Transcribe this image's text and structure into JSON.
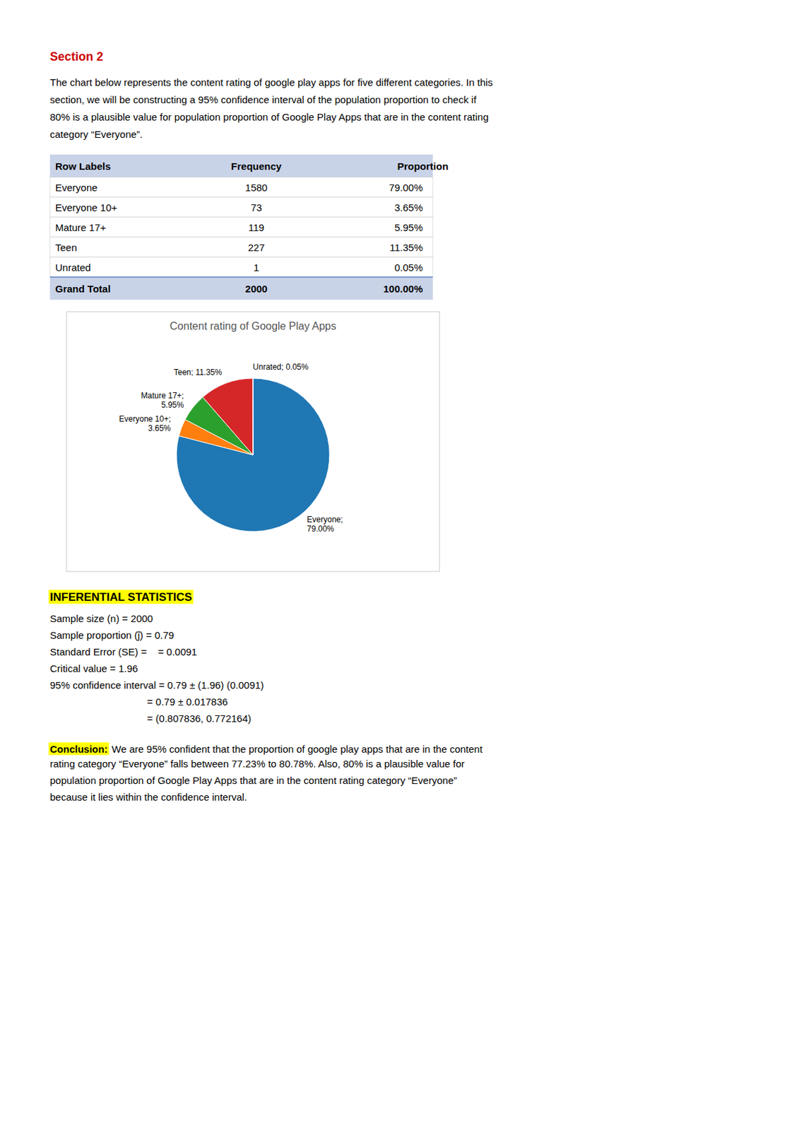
{
  "page": {
    "section_title": "Section 2",
    "section_title_color": "#CC0000",
    "intro_text_lines": [
      "The chart below represents the content rating of google play apps for five different categories. In this",
      "section, we will be constructing a 95% confidence interval of the population proportion to check if",
      "80% is a plausible value for population proportion of Google Play Apps that are in the content rating",
      "category “Everyone”."
    ],
    "table": {
      "headers": [
        "Row Labels",
        "Frequency",
        "Proportion"
      ],
      "rows": [
        [
          "Everyone",
          "1580",
          "79.00%"
        ],
        [
          "Everyone 10+",
          "73",
          "3.65%"
        ],
        [
          "Mature 17+",
          "119",
          "5.95%"
        ],
        [
          "Teen",
          "227",
          "11.35%"
        ],
        [
          "Unrated",
          "1",
          "0.05%"
        ]
      ],
      "footer": [
        "Grand Total",
        "2000",
        "100.00%"
      ],
      "header_color": "#C9D3E8",
      "footer_color": "#C9D3E8"
    },
    "inferential_title": "INFERENTIAL STATISTICS",
    "inferential_highlight": "#FFFF00",
    "stats_lines": [
      "Sample size (n) = 2000",
      "Sample proportion (ĵ) = 0.79",
      "Standard Error (SE) =    = 0.0091",
      "Critical value = 1.96",
      "95% confidence interval = 0.79 ± (1.96) (0.0091)",
      "                                   = 0.79 ± 0.017836",
      "                                   = (0.807836, 0.772164)"
    ],
    "conclusion_label": "Conclusion:",
    "conclusion_highlight": "#FFFF00",
    "conclusion_rest_line1": " We are 95% confident that the proportion of google play apps that are in the content",
    "conclusion_lines": [
      "rating category “Everyone” falls between 77.23% to 80.78%. Also, 80% is a plausible value for",
      "population proportion of Google Play Apps that are in the content rating category “Everyone”",
      "because it lies within the confidence interval."
    ]
  },
  "chart_data": {
    "type": "pie",
    "title": "Content rating of Google Play Apps",
    "values": [
      79.0,
      3.65,
      5.95,
      11.35,
      0.05
    ],
    "value_labels": [
      "Everyone;\n79.00%",
      "Everyone 10+;\n3.65%",
      "Mature 17+;\n5.95%",
      "Teen; 11.35%",
      "Unrated; 0.05%"
    ],
    "data_labels": true
  }
}
